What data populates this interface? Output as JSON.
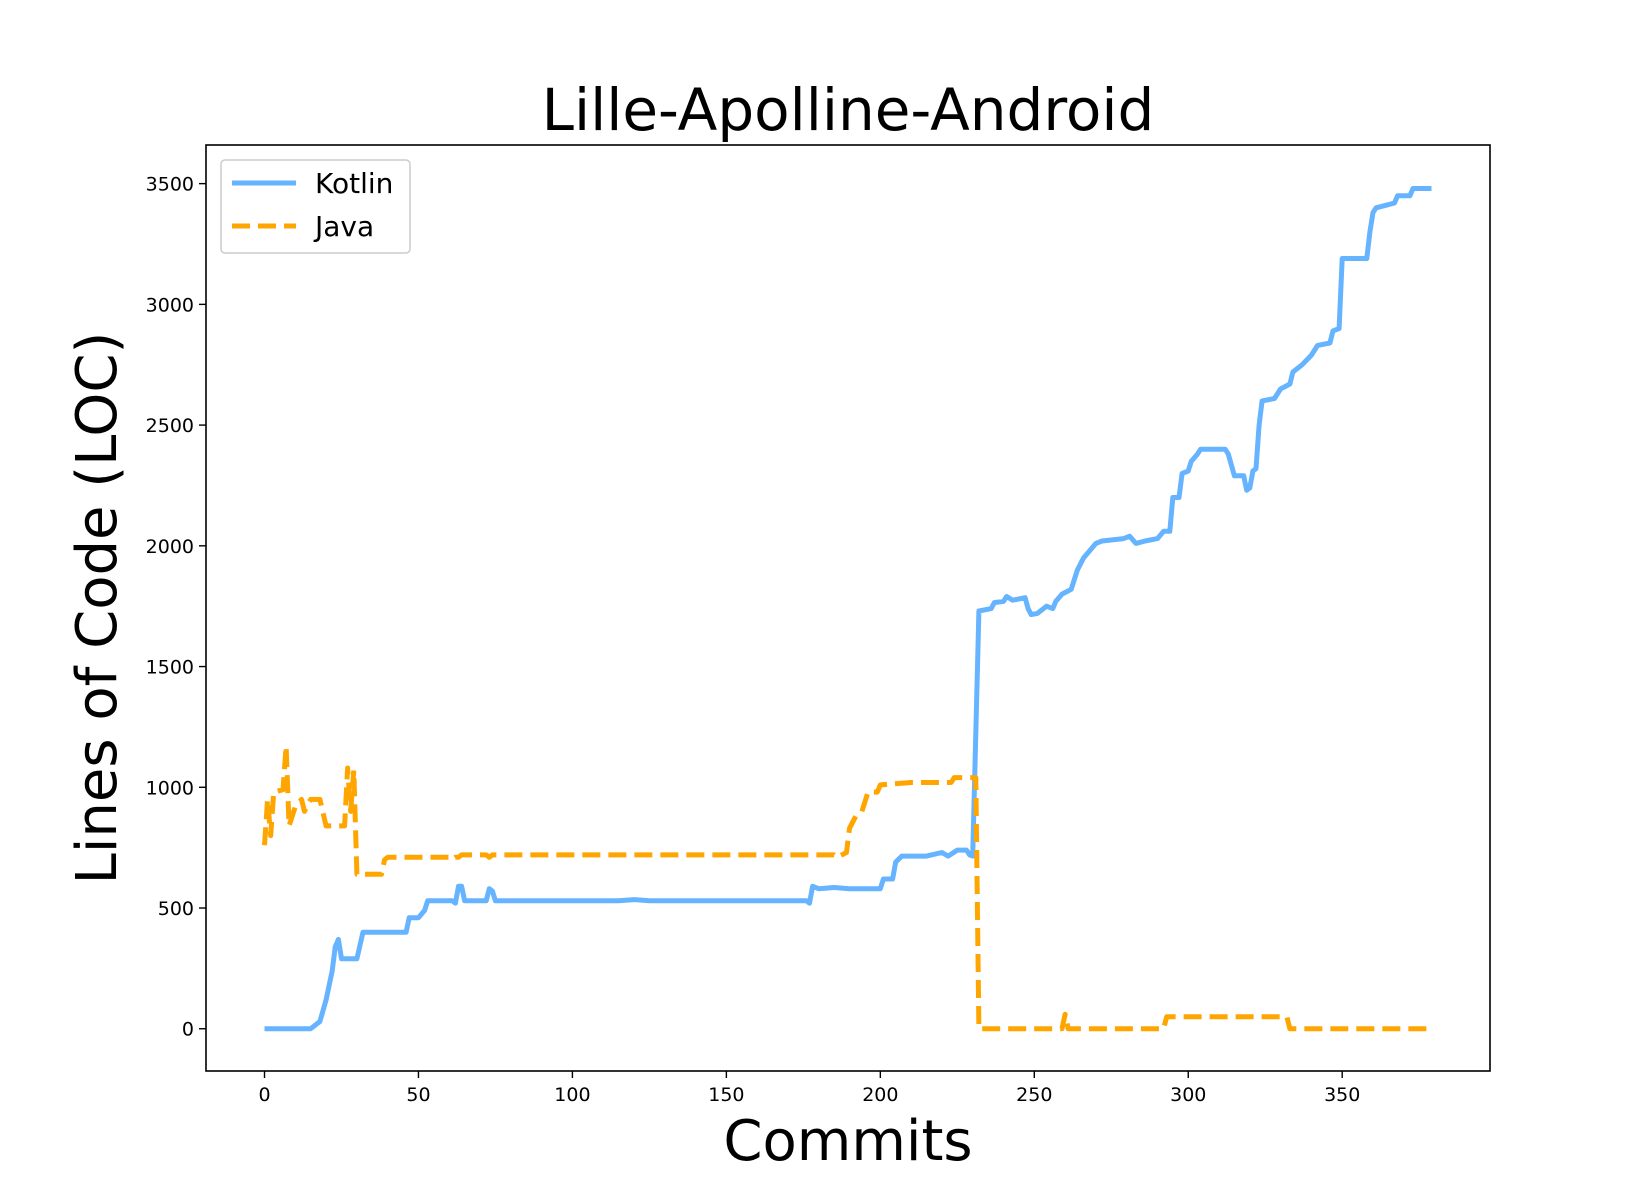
{
  "chart_data": {
    "type": "line",
    "title": "Lille-Apolline-Android",
    "xlabel": "Commits",
    "ylabel": "Lines of Code (LOC)",
    "xlim": [
      -19,
      398
    ],
    "ylim": [
      -175,
      3660
    ],
    "xticks": [
      0,
      50,
      100,
      150,
      200,
      250,
      300,
      350
    ],
    "yticks": [
      0,
      500,
      1000,
      1500,
      2000,
      2500,
      3000,
      3500
    ],
    "grid": false,
    "legend_position": "top-left",
    "series": [
      {
        "name": "Kotlin",
        "color": "#66b3ff",
        "dash": "solid",
        "points": [
          [
            0,
            0
          ],
          [
            15,
            0
          ],
          [
            18,
            30
          ],
          [
            20,
            120
          ],
          [
            22,
            240
          ],
          [
            23,
            340
          ],
          [
            24,
            370
          ],
          [
            25,
            290
          ],
          [
            30,
            290
          ],
          [
            32,
            400
          ],
          [
            46,
            400
          ],
          [
            47,
            460
          ],
          [
            50,
            460
          ],
          [
            52,
            490
          ],
          [
            53,
            530
          ],
          [
            61,
            530
          ],
          [
            62,
            520
          ],
          [
            63,
            590
          ],
          [
            64,
            590
          ],
          [
            65,
            530
          ],
          [
            72,
            530
          ],
          [
            73,
            580
          ],
          [
            74,
            570
          ],
          [
            75,
            530
          ],
          [
            115,
            530
          ],
          [
            120,
            535
          ],
          [
            125,
            530
          ],
          [
            170,
            530
          ],
          [
            176,
            530
          ],
          [
            177,
            520
          ],
          [
            178,
            590
          ],
          [
            180,
            580
          ],
          [
            185,
            585
          ],
          [
            190,
            580
          ],
          [
            200,
            580
          ],
          [
            201,
            620
          ],
          [
            204,
            620
          ],
          [
            205,
            690
          ],
          [
            207,
            715
          ],
          [
            215,
            715
          ],
          [
            220,
            730
          ],
          [
            222,
            715
          ],
          [
            225,
            740
          ],
          [
            228,
            740
          ],
          [
            229,
            720
          ],
          [
            230,
            715
          ],
          [
            232,
            1730
          ],
          [
            236,
            1740
          ],
          [
            237,
            1765
          ],
          [
            240,
            1770
          ],
          [
            241,
            1790
          ],
          [
            243,
            1775
          ],
          [
            247,
            1785
          ],
          [
            248,
            1740
          ],
          [
            249,
            1715
          ],
          [
            251,
            1720
          ],
          [
            254,
            1750
          ],
          [
            256,
            1740
          ],
          [
            257,
            1770
          ],
          [
            259,
            1800
          ],
          [
            262,
            1820
          ],
          [
            264,
            1900
          ],
          [
            266,
            1950
          ],
          [
            268,
            1980
          ],
          [
            270,
            2010
          ],
          [
            272,
            2020
          ],
          [
            279,
            2030
          ],
          [
            281,
            2040
          ],
          [
            283,
            2010
          ],
          [
            286,
            2020
          ],
          [
            290,
            2030
          ],
          [
            292,
            2060
          ],
          [
            294,
            2060
          ],
          [
            295,
            2200
          ],
          [
            297,
            2200
          ],
          [
            298,
            2300
          ],
          [
            300,
            2310
          ],
          [
            301,
            2350
          ],
          [
            303,
            2380
          ],
          [
            304,
            2400
          ],
          [
            312,
            2400
          ],
          [
            313,
            2380
          ],
          [
            315,
            2290
          ],
          [
            318,
            2290
          ],
          [
            319,
            2230
          ],
          [
            320,
            2240
          ],
          [
            321,
            2310
          ],
          [
            322,
            2320
          ],
          [
            323,
            2500
          ],
          [
            324,
            2600
          ],
          [
            328,
            2610
          ],
          [
            330,
            2650
          ],
          [
            333,
            2670
          ],
          [
            334,
            2720
          ],
          [
            337,
            2750
          ],
          [
            340,
            2790
          ],
          [
            342,
            2830
          ],
          [
            346,
            2840
          ],
          [
            347,
            2890
          ],
          [
            349,
            2900
          ],
          [
            350,
            3190
          ],
          [
            358,
            3190
          ],
          [
            359,
            3300
          ],
          [
            360,
            3380
          ],
          [
            361,
            3400
          ],
          [
            364,
            3410
          ],
          [
            367,
            3420
          ],
          [
            368,
            3450
          ],
          [
            372,
            3450
          ],
          [
            373,
            3480
          ],
          [
            379,
            3480
          ]
        ]
      },
      {
        "name": "Java",
        "color": "#ffa500",
        "dash": "dashed",
        "points": [
          [
            0,
            760
          ],
          [
            1,
            950
          ],
          [
            2,
            800
          ],
          [
            3,
            980
          ],
          [
            6,
            990
          ],
          [
            7,
            1170
          ],
          [
            8,
            840
          ],
          [
            10,
            920
          ],
          [
            12,
            950
          ],
          [
            13,
            900
          ],
          [
            14,
            930
          ],
          [
            15,
            950
          ],
          [
            18,
            950
          ],
          [
            20,
            840
          ],
          [
            26,
            840
          ],
          [
            27,
            1080
          ],
          [
            28,
            900
          ],
          [
            29,
            1070
          ],
          [
            30,
            640
          ],
          [
            38,
            640
          ],
          [
            39,
            700
          ],
          [
            40,
            710
          ],
          [
            60,
            710
          ],
          [
            61,
            700
          ],
          [
            62,
            710
          ],
          [
            63,
            710
          ],
          [
            64,
            720
          ],
          [
            72,
            720
          ],
          [
            73,
            710
          ],
          [
            74,
            720
          ],
          [
            185,
            720
          ],
          [
            186,
            710
          ],
          [
            189,
            730
          ],
          [
            190,
            830
          ],
          [
            192,
            880
          ],
          [
            194,
            900
          ],
          [
            196,
            980
          ],
          [
            199,
            980
          ],
          [
            200,
            1010
          ],
          [
            210,
            1020
          ],
          [
            223,
            1020
          ],
          [
            224,
            1040
          ],
          [
            231,
            1040
          ],
          [
            232,
            0
          ],
          [
            259,
            0
          ],
          [
            260,
            60
          ],
          [
            261,
            0
          ],
          [
            292,
            0
          ],
          [
            293,
            50
          ],
          [
            332,
            50
          ],
          [
            333,
            0
          ],
          [
            379,
            0
          ]
        ]
      }
    ]
  }
}
